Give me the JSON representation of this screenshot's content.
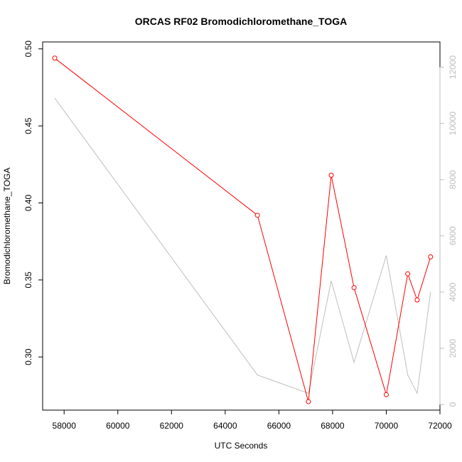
{
  "chart_data": {
    "type": "line",
    "title": "ORCAS RF02 Bromodichloromethane_TOGA",
    "xlabel": "UTC Seconds",
    "ylabel": "Bromodichloromethane_TOGA",
    "xlim": [
      57200,
      72000
    ],
    "ylim": [
      0.2655,
      0.5045
    ],
    "y2lim": [
      -200,
      12900
    ],
    "x_ticks": [
      58000,
      60000,
      62000,
      64000,
      66000,
      68000,
      70000,
      72000
    ],
    "y_ticks": [
      0.3,
      0.35,
      0.4,
      0.45,
      0.5
    ],
    "y_tick_labels": [
      "0.30",
      "0.35",
      "0.40",
      "0.45",
      "0.50"
    ],
    "y2_ticks": [
      0,
      2000,
      4000,
      6000,
      8000,
      10000,
      12000
    ],
    "grid": false,
    "series": [
      {
        "color": "#ff0000",
        "axis": "left",
        "markers": "open-circle",
        "x": [
          57650,
          65200,
          67100,
          67950,
          68800,
          70000,
          70800,
          71150,
          71650
        ],
        "y": [
          0.494,
          0.392,
          0.271,
          0.418,
          0.345,
          0.2755,
          0.354,
          0.337,
          0.365
        ]
      },
      {
        "color": "#bebebe",
        "axis": "right",
        "markers": "none",
        "x": [
          57650,
          65200,
          67100,
          67950,
          68800,
          70000,
          70800,
          71150,
          71650
        ],
        "y": [
          10900,
          1050,
          400,
          4400,
          1500,
          5300,
          1050,
          400,
          4000
        ]
      }
    ]
  }
}
